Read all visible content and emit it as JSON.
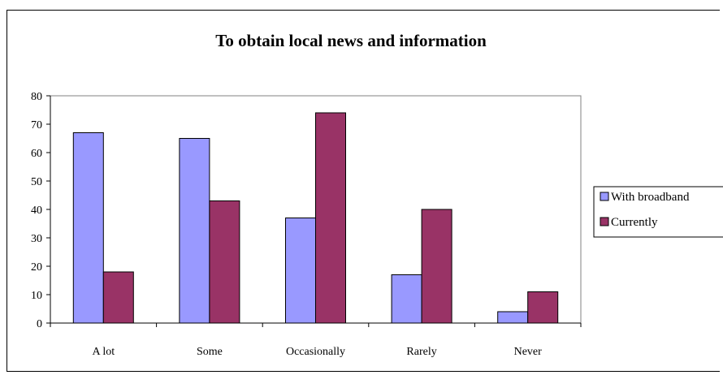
{
  "chart_data": {
    "type": "bar",
    "title": "To obtain local news and information",
    "categories": [
      "A lot",
      "Some",
      "Occasionally",
      "Rarely",
      "Never"
    ],
    "series": [
      {
        "name": "With broadband",
        "values": [
          67,
          65,
          37,
          17,
          4
        ],
        "color": "#9999ff"
      },
      {
        "name": "Currently",
        "values": [
          18,
          43,
          74,
          40,
          11
        ],
        "color": "#993366"
      }
    ],
    "ylim": [
      0,
      80
    ],
    "yticks": [
      "0",
      "10",
      "20",
      "30",
      "40",
      "50",
      "60",
      "70",
      "80"
    ],
    "grid": false,
    "legend_position": "right"
  }
}
